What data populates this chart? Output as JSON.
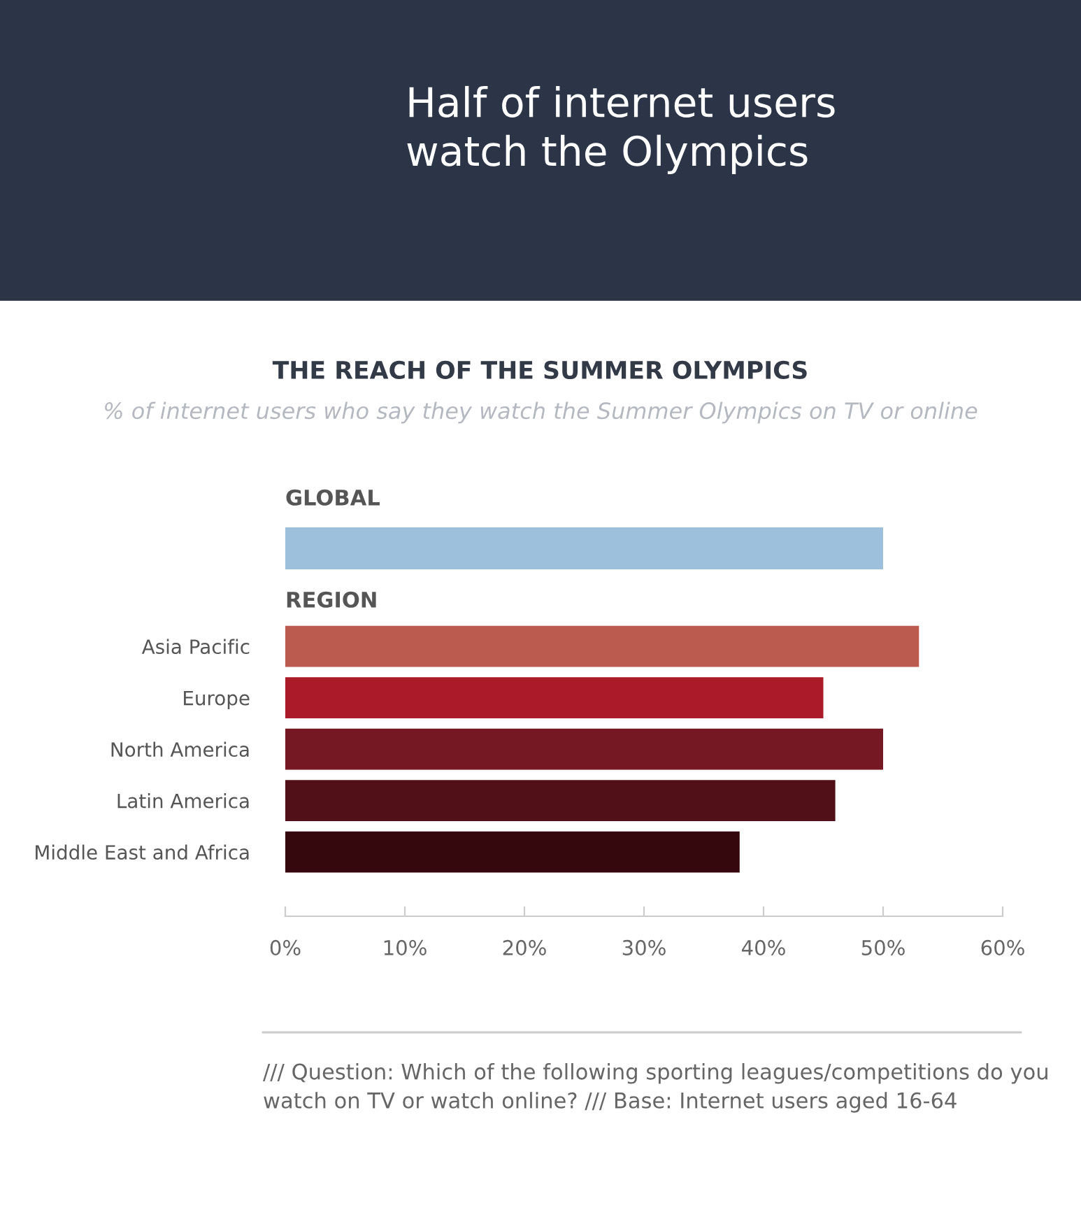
{
  "chart_data": [
    {
      "type": "bar",
      "orientation": "horizontal",
      "title": "Half of internet users\nwatch the Olympics",
      "subtitle": "THE REACH OF THE SUMMER OLYMPICS",
      "annotations": [
        "% of internet users who say they watch the Summer Olympics on TV or online",
        "GLOBAL"
      ],
      "categories": [
        null
      ],
      "values": [
        50
      ],
      "colors": [
        "#9dc0dc"
      ],
      "xlim": [
        0,
        60
      ],
      "tick_labels": false,
      "grid": false,
      "legend": false
    },
    {
      "type": "bar",
      "orientation": "horizontal",
      "title": "REGION",
      "annotations": [
        "/// Question: Which of the following sporting leagues/competitions do you watch on TV or watch online? /// Base: Internet users aged 16-64"
      ],
      "categories": [
        "Asia Pacific",
        "Europe",
        "North America",
        "Latin America",
        "Middle East and Africa"
      ],
      "values": [
        53,
        45,
        50,
        46,
        38
      ],
      "colors": [
        "#bb5a4e",
        "#ab1a29",
        "#751824",
        "#511018",
        "#34080c"
      ],
      "xlim": [
        0,
        60
      ],
      "xticks": [
        {
          "value": 0,
          "label": "0%"
        },
        {
          "value": 10,
          "label": "10%"
        },
        {
          "value": 20,
          "label": "20%"
        },
        {
          "value": 30,
          "label": "30%"
        },
        {
          "value": 40,
          "label": "40%"
        },
        {
          "value": 50,
          "label": "50%"
        },
        {
          "value": 60,
          "label": "60%"
        }
      ],
      "grid": false,
      "legend": false
    }
  ]
}
